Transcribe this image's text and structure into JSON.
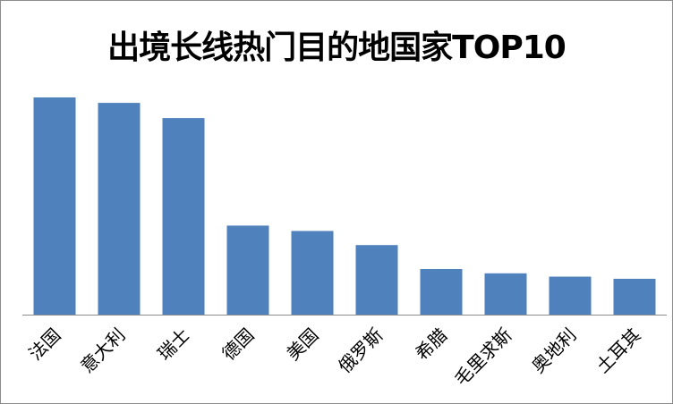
{
  "chart_data": {
    "type": "bar",
    "title": "出境长线热门目的地国家TOP10",
    "categories": [
      "法国",
      "意大利",
      "瑞士",
      "德国",
      "美国",
      "俄罗斯",
      "希腊",
      "毛里求斯",
      "奥地利",
      "土耳其"
    ],
    "values": [
      100,
      97.5,
      90.5,
      41,
      38.5,
      32,
      21,
      19,
      17.5,
      16.5
    ],
    "ylim": [
      0,
      100
    ],
    "grid": false,
    "legend": "none",
    "bar_color": "#4f81bd",
    "axis_color": "#8c8c8c"
  }
}
